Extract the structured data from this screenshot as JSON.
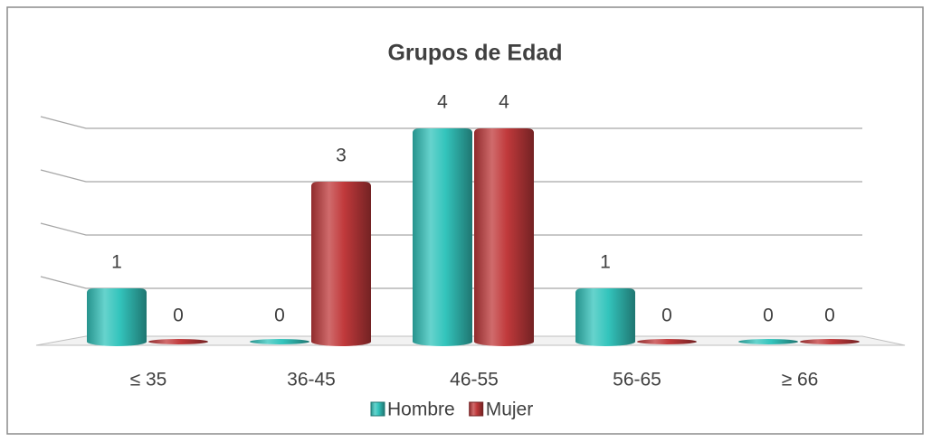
{
  "chart_data": {
    "type": "bar",
    "title": "Grupos de Edad",
    "categories": [
      "≤ 35",
      "36-45",
      "46-55",
      "56-65",
      "≥ 66"
    ],
    "series": [
      {
        "name": "Hombre",
        "color": "#33c4bc",
        "values": [
          1,
          0,
          4,
          1,
          0
        ]
      },
      {
        "name": "Mujer",
        "color": "#c0393b",
        "values": [
          0,
          3,
          4,
          0,
          0
        ]
      }
    ],
    "ylim": [
      0,
      4
    ],
    "yticks": [
      0,
      1,
      2,
      3,
      4
    ],
    "grid": true,
    "legend": "bottom"
  }
}
